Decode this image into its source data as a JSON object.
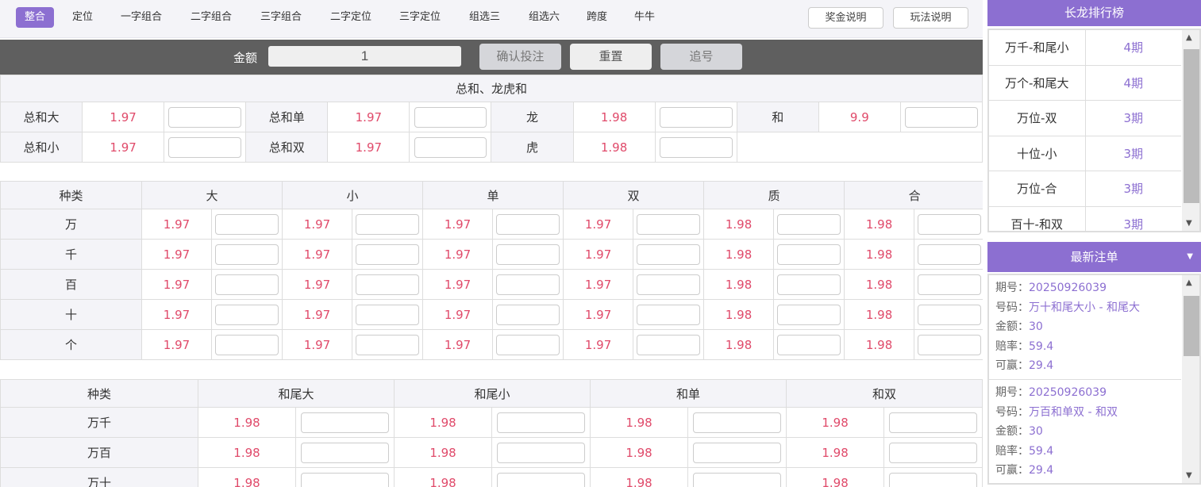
{
  "nav": {
    "tabs": [
      "整合",
      "定位",
      "一字组合",
      "二字组合",
      "三字组合",
      "二字定位",
      "三字定位",
      "组选三",
      "组选六",
      "跨度",
      "牛牛"
    ],
    "active": 0,
    "bonus_info": "奖金说明",
    "rules_info": "玩法说明"
  },
  "betbar": {
    "amount_label": "金额",
    "amount_value": "1",
    "confirm": "确认投注",
    "reset": "重置",
    "chase": "追号"
  },
  "sum_table": {
    "title": "总和、龙虎和",
    "rows": [
      [
        [
          "总和大",
          "1.97"
        ],
        [
          "总和单",
          "1.97"
        ],
        [
          "龙",
          "1.98"
        ],
        [
          "和",
          "9.9"
        ]
      ],
      [
        [
          "总和小",
          "1.97"
        ],
        [
          "总和双",
          "1.97"
        ],
        [
          "虎",
          "1.98"
        ]
      ]
    ]
  },
  "pos_table": {
    "headers": [
      "种类",
      "大",
      "小",
      "单",
      "双",
      "质",
      "合"
    ],
    "rows": [
      {
        "name": "万",
        "odds": [
          "1.97",
          "1.97",
          "1.97",
          "1.97",
          "1.98",
          "1.98"
        ]
      },
      {
        "name": "千",
        "odds": [
          "1.97",
          "1.97",
          "1.97",
          "1.97",
          "1.98",
          "1.98"
        ]
      },
      {
        "name": "百",
        "odds": [
          "1.97",
          "1.97",
          "1.97",
          "1.97",
          "1.98",
          "1.98"
        ]
      },
      {
        "name": "十",
        "odds": [
          "1.97",
          "1.97",
          "1.97",
          "1.97",
          "1.98",
          "1.98"
        ]
      },
      {
        "name": "个",
        "odds": [
          "1.97",
          "1.97",
          "1.97",
          "1.97",
          "1.98",
          "1.98"
        ]
      }
    ]
  },
  "pair_table": {
    "headers": [
      "种类",
      "和尾大",
      "和尾小",
      "和单",
      "和双"
    ],
    "rows": [
      {
        "name": "万千",
        "odds": [
          "1.98",
          "1.98",
          "1.98",
          "1.98"
        ]
      },
      {
        "name": "万百",
        "odds": [
          "1.98",
          "1.98",
          "1.98",
          "1.98"
        ]
      },
      {
        "name": "万十",
        "odds": [
          "1.98",
          "1.98",
          "1.98",
          "1.98"
        ]
      }
    ]
  },
  "longdragon": {
    "title": "长龙排行榜",
    "items": [
      {
        "name": "万千-和尾小",
        "periods": "4期"
      },
      {
        "name": "万个-和尾大",
        "periods": "4期"
      },
      {
        "name": "万位-双",
        "periods": "3期"
      },
      {
        "name": "十位-小",
        "periods": "3期"
      },
      {
        "name": "万位-合",
        "periods": "3期"
      },
      {
        "name": "百十-和双",
        "periods": "3期"
      }
    ]
  },
  "latest_orders": {
    "title": "最新注单",
    "labels": {
      "issue": "期号：",
      "code": "号码：",
      "amount": "金额：",
      "odds": "赔率：",
      "win": "可赢："
    },
    "items": [
      {
        "issue": "20250926039",
        "code": "万十和尾大小 - 和尾大",
        "amount": "30",
        "odds": "59.4",
        "win": "29.4"
      },
      {
        "issue": "20250926039",
        "code": "万百和单双 - 和双",
        "amount": "30",
        "odds": "59.4",
        "win": "29.4"
      }
    ]
  },
  "colors": {
    "accent": "#8c6fd1",
    "odds": "#e04a6a",
    "bar": "#5f5f5f"
  }
}
